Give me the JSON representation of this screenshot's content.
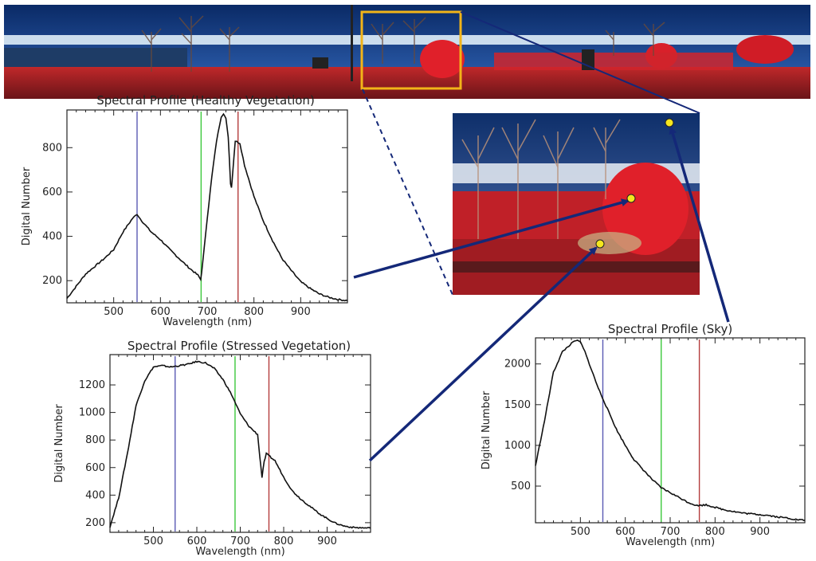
{
  "colors": {
    "band_blue": "#5a5ab4",
    "band_green": "#3cc83c",
    "band_red": "#b43c3c",
    "highlight_box": "#f2b418",
    "arrow": "#142878",
    "marker": "#f5e61e",
    "sky": "#0e2f6a",
    "vegetation": "#d8202a"
  },
  "chart_data": [
    {
      "type": "line",
      "title": "Spectral Profile (Healthy Vegetation)",
      "xlabel": "Wavelength (nm)",
      "ylabel": "Digital Number",
      "xlim": [
        400,
        1000
      ],
      "ylim": [
        100,
        970
      ],
      "xticks": [
        500,
        600,
        700,
        800,
        900
      ],
      "yticks": [
        200,
        400,
        600,
        800
      ],
      "band_lines": [
        550,
        687,
        766
      ],
      "x": [
        400,
        420,
        440,
        460,
        480,
        500,
        520,
        540,
        550,
        560,
        580,
        600,
        620,
        640,
        660,
        680,
        686,
        690,
        700,
        710,
        720,
        730,
        735,
        740,
        745,
        750,
        752,
        755,
        760,
        770,
        780,
        800,
        820,
        840,
        860,
        880,
        900,
        920,
        940,
        960,
        980,
        1000
      ],
      "y": [
        120,
        175,
        230,
        265,
        300,
        340,
        420,
        480,
        500,
        470,
        420,
        385,
        340,
        300,
        260,
        225,
        205,
        270,
        480,
        670,
        830,
        940,
        955,
        930,
        850,
        640,
        620,
        700,
        830,
        820,
        720,
        580,
        470,
        380,
        300,
        245,
        195,
        165,
        140,
        125,
        115,
        110
      ]
    },
    {
      "type": "line",
      "title": "Spectral Profile (Stressed Vegetation)",
      "xlabel": "Wavelength (nm)",
      "ylabel": "Digital Number",
      "xlim": [
        400,
        1000
      ],
      "ylim": [
        130,
        1420
      ],
      "xticks": [
        500,
        600,
        700,
        800,
        900
      ],
      "yticks": [
        200,
        400,
        600,
        800,
        1000,
        1200
      ],
      "band_lines": [
        550,
        688,
        766
      ],
      "x": [
        400,
        420,
        440,
        460,
        480,
        500,
        520,
        540,
        560,
        580,
        600,
        620,
        640,
        660,
        680,
        690,
        700,
        720,
        740,
        745,
        750,
        755,
        760,
        780,
        800,
        820,
        840,
        860,
        880,
        900,
        920,
        940,
        960,
        1000
      ],
      "y": [
        170,
        380,
        700,
        1050,
        1230,
        1330,
        1340,
        1330,
        1340,
        1350,
        1370,
        1360,
        1320,
        1240,
        1130,
        1060,
        990,
        900,
        840,
        680,
        530,
        640,
        700,
        650,
        530,
        430,
        370,
        320,
        270,
        230,
        195,
        175,
        165,
        160
      ]
    },
    {
      "type": "line",
      "title": "Spectral Profile (Sky)",
      "xlabel": "Wavelength (nm)",
      "ylabel": "Digital Number",
      "xlim": [
        400,
        1000
      ],
      "ylim": [
        50,
        2320
      ],
      "xticks": [
        500,
        600,
        700,
        800,
        900
      ],
      "yticks": [
        500,
        1000,
        1500,
        2000
      ],
      "band_lines": [
        550,
        680,
        765
      ],
      "x": [
        400,
        420,
        440,
        460,
        480,
        490,
        500,
        510,
        520,
        540,
        560,
        580,
        600,
        620,
        640,
        660,
        680,
        700,
        720,
        740,
        760,
        780,
        800,
        820,
        840,
        860,
        880,
        900,
        920,
        940,
        960,
        980,
        1000
      ],
      "y": [
        750,
        1300,
        1900,
        2150,
        2250,
        2290,
        2270,
        2150,
        2000,
        1700,
        1450,
        1200,
        1000,
        820,
        700,
        580,
        480,
        420,
        360,
        300,
        260,
        270,
        240,
        210,
        190,
        170,
        160,
        150,
        140,
        120,
        110,
        90,
        80
      ]
    }
  ]
}
